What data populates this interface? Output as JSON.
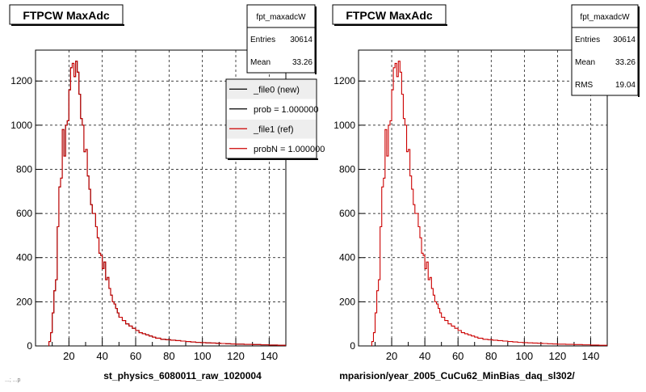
{
  "chart_data": [
    {
      "type": "bar",
      "title": "FTPCW MaxAdc",
      "xlabel": "st_physics_6080011_raw_1020004",
      "xlim": [
        0,
        150
      ],
      "ylim": [
        0,
        1340
      ],
      "x_ticks": [
        "20",
        "40",
        "60",
        "80",
        "100",
        "120",
        "140"
      ],
      "y_ticks": [
        "200",
        "400",
        "600",
        "800",
        "1000",
        "1200"
      ],
      "grid": true,
      "stats": {
        "name": "fpt_maxadcW",
        "rows": [
          {
            "label": "Entries",
            "value": "30614"
          },
          {
            "label": "Mean",
            "value": "33.26"
          }
        ]
      },
      "legend": {
        "position": "top-right",
        "entries": [
          {
            "label": "_file0 (new)",
            "color": "#000000"
          },
          {
            "label": "prob = 1.000000",
            "color": "#000000"
          },
          {
            "label": "_file1 (ref)",
            "color": "#cc0000"
          },
          {
            "label": "probN = 1.000000",
            "color": "#cc0000"
          }
        ]
      },
      "series": [
        {
          "name": "_file0 (new)",
          "color": "#000000"
        },
        {
          "name": "_file1 (ref)",
          "color": "#cc0000"
        }
      ],
      "bin_width": 1,
      "x": [
        8,
        9,
        10,
        11,
        12,
        13,
        14,
        15,
        16,
        17,
        18,
        19,
        20,
        21,
        22,
        23,
        24,
        25,
        26,
        27,
        28,
        29,
        30,
        31,
        32,
        33,
        34,
        35,
        36,
        37,
        38,
        39,
        40,
        41,
        42,
        43,
        44,
        45,
        46,
        47,
        48,
        49,
        50,
        52,
        54,
        56,
        58,
        60,
        62,
        64,
        66,
        68,
        70,
        72,
        75,
        78,
        81,
        84,
        87,
        90,
        93,
        96,
        99,
        102,
        105,
        108,
        111,
        114,
        117,
        120,
        125,
        130,
        135,
        140,
        145,
        150
      ],
      "values": [
        20,
        60,
        150,
        250,
        300,
        540,
        720,
        760,
        980,
        860,
        1000,
        1020,
        1160,
        1260,
        1280,
        1220,
        1290,
        1240,
        1140,
        1030,
        1000,
        880,
        890,
        770,
        710,
        640,
        600,
        600,
        540,
        490,
        420,
        410,
        350,
        380,
        300,
        310,
        260,
        230,
        200,
        190,
        170,
        150,
        130,
        115,
        100,
        90,
        80,
        70,
        60,
        55,
        50,
        45,
        40,
        35,
        30,
        28,
        26,
        24,
        22,
        20,
        18,
        16,
        15,
        14,
        13,
        12,
        11,
        10,
        9,
        8,
        7,
        6,
        5,
        4,
        3,
        3
      ]
    },
    {
      "type": "bar",
      "title": "FTPCW MaxAdc",
      "xlabel": "mparision/year_2005_CuCu62_MinBias_daq_sl302/",
      "xlim": [
        0,
        150
      ],
      "ylim": [
        0,
        1340
      ],
      "x_ticks": [
        "20",
        "40",
        "60",
        "80",
        "100",
        "120",
        "140"
      ],
      "y_ticks": [
        "200",
        "400",
        "600",
        "800",
        "1000",
        "1200"
      ],
      "grid": true,
      "stats": {
        "name": "fpt_maxadcW",
        "rows": [
          {
            "label": "Entries",
            "value": "30614"
          },
          {
            "label": "Mean",
            "value": "33.26"
          },
          {
            "label": "RMS",
            "value": "19.04"
          }
        ]
      },
      "series": [
        {
          "name": "",
          "color": "#cc0000"
        }
      ],
      "bin_width": 1,
      "x": [
        8,
        9,
        10,
        11,
        12,
        13,
        14,
        15,
        16,
        17,
        18,
        19,
        20,
        21,
        22,
        23,
        24,
        25,
        26,
        27,
        28,
        29,
        30,
        31,
        32,
        33,
        34,
        35,
        36,
        37,
        38,
        39,
        40,
        41,
        42,
        43,
        44,
        45,
        46,
        47,
        48,
        49,
        50,
        52,
        54,
        56,
        58,
        60,
        62,
        64,
        66,
        68,
        70,
        72,
        75,
        78,
        81,
        84,
        87,
        90,
        93,
        96,
        99,
        102,
        105,
        108,
        111,
        114,
        117,
        120,
        125,
        130,
        135,
        140,
        145,
        150
      ],
      "values": [
        20,
        60,
        150,
        250,
        300,
        540,
        720,
        760,
        980,
        860,
        1000,
        1020,
        1160,
        1260,
        1280,
        1220,
        1290,
        1240,
        1140,
        1030,
        1000,
        880,
        890,
        770,
        710,
        640,
        600,
        600,
        540,
        490,
        420,
        410,
        350,
        380,
        300,
        310,
        260,
        230,
        200,
        190,
        170,
        150,
        130,
        115,
        100,
        90,
        80,
        70,
        60,
        55,
        50,
        45,
        40,
        35,
        30,
        28,
        26,
        24,
        22,
        20,
        18,
        16,
        15,
        14,
        13,
        12,
        11,
        10,
        9,
        8,
        7,
        6,
        5,
        4,
        3,
        3
      ]
    }
  ],
  "footer_text": "...; ...p"
}
